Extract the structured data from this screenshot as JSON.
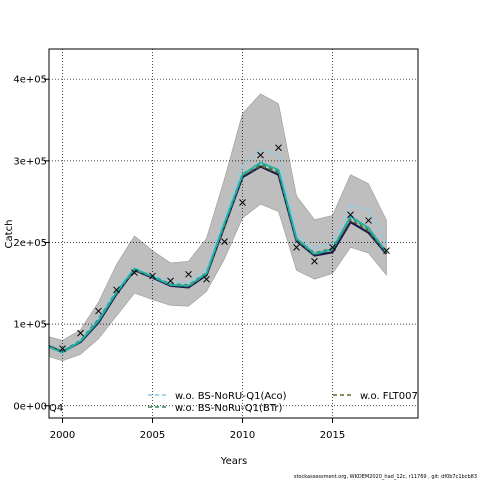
{
  "chart_data": {
    "type": "line",
    "xlabel": "Years",
    "ylabel": "Catch",
    "xlim": [
      1999.25,
      2019.75
    ],
    "ylim": [
      -15000,
      437000
    ],
    "xticks": [
      2000,
      2005,
      2010,
      2015
    ],
    "xtick_labels": [
      "2000",
      "2005",
      "2010",
      "2015"
    ],
    "yticks": [
      0,
      100000,
      200000,
      300000,
      400000
    ],
    "ytick_labels": [
      "0e+00",
      "1e+05",
      "2e+05",
      "3e+05",
      "4e+05"
    ],
    "grid": true,
    "years": [
      1999,
      2000,
      2001,
      2002,
      2003,
      2004,
      2005,
      2006,
      2007,
      2008,
      2009,
      2010,
      2011,
      2012,
      2013,
      2014,
      2015,
      2016,
      2017,
      2018
    ],
    "band": {
      "color": "#bebebe",
      "lower": [
        62000,
        55000,
        63000,
        82000,
        110000,
        138000,
        130000,
        123000,
        122000,
        140000,
        180000,
        230000,
        247000,
        238000,
        166000,
        155000,
        162000,
        194000,
        187000,
        160000
      ],
      "upper": [
        86000,
        80000,
        93000,
        127000,
        173000,
        208000,
        190000,
        175000,
        177000,
        205000,
        278000,
        358000,
        382000,
        370000,
        257000,
        228000,
        233000,
        283000,
        272000,
        227000
      ]
    },
    "series": [
      {
        "name": "",
        "color": "#1a1a4e",
        "width": 2.2,
        "values": [
          75000,
          66000,
          78000,
          102000,
          137000,
          166000,
          157000,
          147000,
          145000,
          160000,
          220000,
          280000,
          293000,
          283000,
          202000,
          184000,
          188000,
          225000,
          212000,
          186000
        ]
      },
      {
        "name": "w.o. BS-NoRU-Q1(Aco)",
        "color": "#87ceeb",
        "width": 1.6,
        "dash": "4,3",
        "values": [
          77000,
          68000,
          81000,
          108000,
          143000,
          169000,
          160000,
          152000,
          151000,
          167000,
          229000,
          293000,
          314000,
          308000,
          211000,
          192000,
          199000,
          246000,
          240000,
          200000
        ]
      },
      {
        "name": "w.o. BS-NoRu-Q1(BTr)",
        "color": "#2e8b57",
        "width": 1.6,
        "dash": "4,3",
        "values": [
          76000,
          67000,
          80000,
          106000,
          140000,
          167000,
          159000,
          149000,
          148000,
          163000,
          224000,
          284000,
          296000,
          287000,
          205000,
          187000,
          193000,
          231000,
          216000,
          189000
        ]
      },
      {
        "name": "w.o. FLT007",
        "color": "#556b2f",
        "width": 1.6,
        "dash": "4,3",
        "values": [
          75000,
          66000,
          79000,
          104000,
          138000,
          166000,
          158000,
          148000,
          146000,
          161000,
          221000,
          282000,
          294000,
          285000,
          203000,
          185000,
          191000,
          228000,
          214000,
          187000
        ]
      },
      {
        "name": "",
        "color": "#20b2aa",
        "width": 1.8,
        "values": [
          74000,
          65000,
          79000,
          104000,
          139000,
          168000,
          158000,
          148000,
          147000,
          162000,
          224000,
          283000,
          298000,
          289000,
          205000,
          186000,
          192000,
          232000,
          218000,
          188000
        ]
      }
    ],
    "observed": {
      "marker": "x",
      "years": [
        2000,
        2001,
        2002,
        2003,
        2004,
        2005,
        2006,
        2007,
        2008,
        2009,
        2010,
        2011,
        2012,
        2013,
        2014,
        2015,
        2016,
        2017,
        2018
      ],
      "values": [
        70000,
        89000,
        116000,
        142000,
        163000,
        159000,
        153000,
        161000,
        155000,
        201000,
        249000,
        307000,
        316000,
        194000,
        177000,
        194000,
        234000,
        227000,
        190000
      ]
    },
    "legend": {
      "placement": "bottom",
      "entries": [
        "w.o. BS-NoRU-Q1(Aco)",
        "w.o. BS-NoRu-Q1(BTr)",
        "w.o. FLT007"
      ]
    },
    "annotations": [
      "Q4"
    ],
    "footer": "stockassessment.org, WKDEM2020_had_12c, r11769 , git: df0b7c1bcb83"
  }
}
